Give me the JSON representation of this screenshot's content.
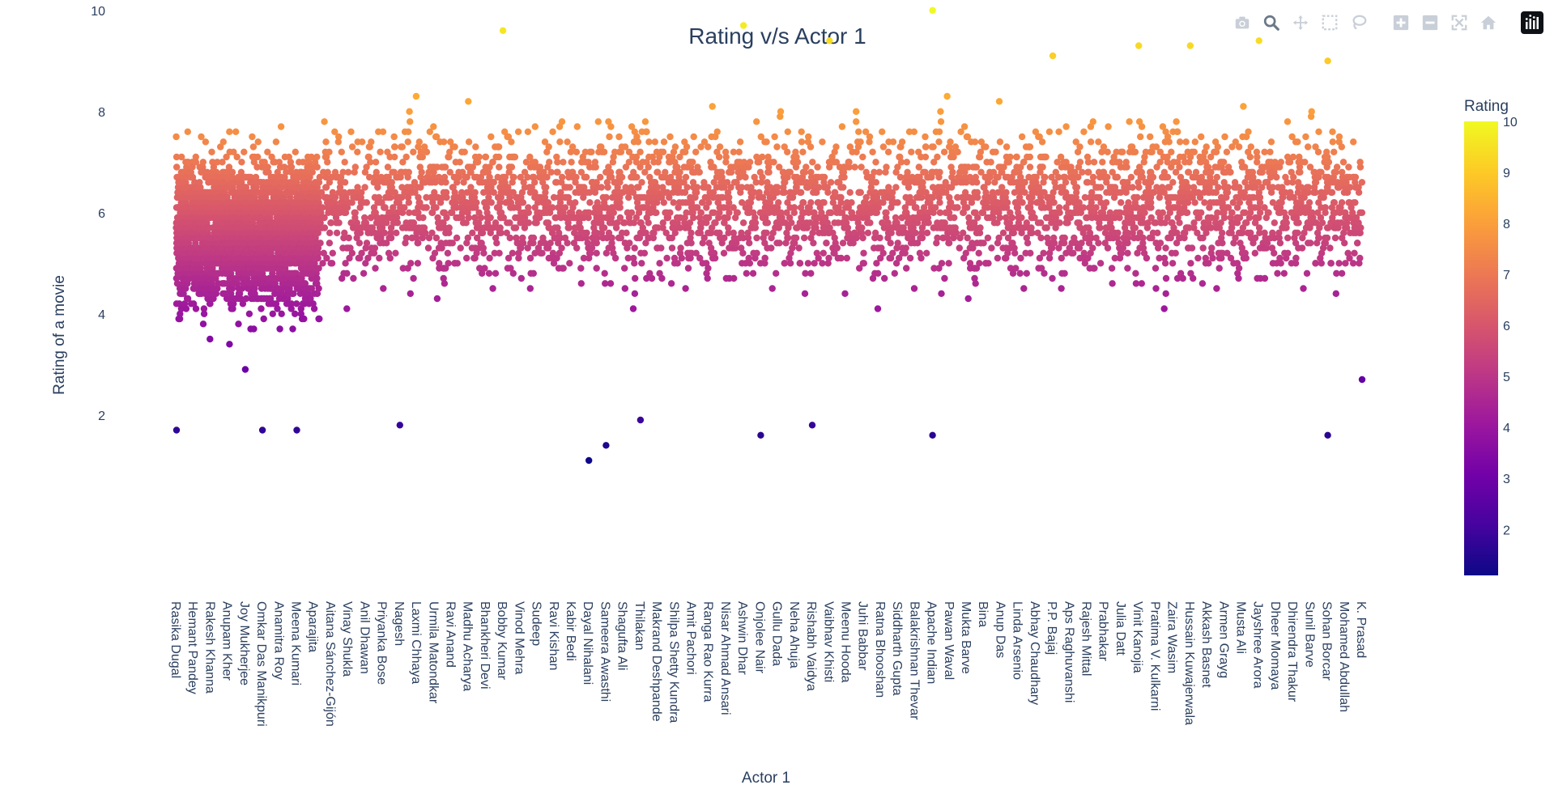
{
  "chart_data": {
    "type": "scatter",
    "title": "Rating v/s Actor 1",
    "xlabel": "Actor 1",
    "ylabel": "Rating of a movie",
    "ylim": [
      1,
      10.25
    ],
    "yticks": [
      2,
      4,
      6,
      8,
      10
    ],
    "grid": false,
    "colorbar": {
      "title": "Rating",
      "range": [
        1.1,
        10
      ],
      "ticks": [
        2,
        3,
        4,
        5,
        6,
        7,
        8,
        9,
        10
      ],
      "colorscale": "plasma"
    },
    "x_tick_labels": [
      "Rasika Dugal",
      "Hemant Pandey",
      "Rakesh Khanna",
      "Anupam Kher",
      "Joy Mukherjee",
      "Omkar Das Manikpuri",
      "Anamitra Roy",
      "Meena Kumari",
      "Aparajita",
      "Aitana Sánchez-Gijón",
      "Vinay Shukla",
      "Anil Dhawan",
      "Priyanka Bose",
      "Nagesh",
      "Laxmi Chhaya",
      "Urmila Matondkar",
      "Ravi Anand",
      "Madhu Acharya",
      "Bhankheri Devi",
      "Bobby Kumar",
      "Vinod Mehra",
      "Sudeep",
      "Ravi Kishan",
      "Kabir Bedi",
      "Dayal Nihalani",
      "Sameera Awasthi",
      "Shagufta Ali",
      "Thilakan",
      "Makrand Deshpande",
      "Shilpa Shetty Kundra",
      "Amit Pachori",
      "Ranga Rao Kurra",
      "Nisar Ahmad Ansari",
      "Ashwin Dhar",
      "Onjolee Nair",
      "Gullu Dada",
      "Neha Ahuja",
      "Rishabh Vaidya",
      "Vaibhav Khisti",
      "Meenu Hooda",
      "Juhi Babbar",
      "Ratna Bhooshan",
      "Siddharth Gupta",
      "Balakrishnan Thevar",
      "Apache Indian",
      "Pawan Waval",
      "Mukta Barve",
      "Bina",
      "Anup Das",
      "Linda Arsenio",
      "Abhay Chaudhary",
      "P.P. Bajaj",
      "Aps Raghuvanshi",
      "Rajesh Mittal",
      "Prabhakar",
      "Julia Datt",
      "Vinit Kanojia",
      "Pratima V. Kulkarni",
      "Zaira Wasim",
      "Hussain Kuwajerwala",
      "Akkash Basnet",
      "Armen Grayg",
      "Musta Ali",
      "Jayshree Arora",
      "Dheer Momaya",
      "Dhirendra Thakur",
      "Sunil Barve",
      "Sohan Borcar",
      "Mohamed Abdullah",
      "K. Prasad"
    ],
    "x_categories_count": 2046,
    "points_sample": [
      {
        "x": "Rasika Dugal",
        "y": 1.7
      },
      {
        "x": "Joy Mukherjee",
        "y": 2.9
      },
      {
        "x": "Omkar Das Manikpuri",
        "y": 1.7
      },
      {
        "x": "Meena Kumari",
        "y": 1.7
      },
      {
        "x": "Nagesh",
        "y": 1.8
      },
      {
        "x": "Bobby Kumar",
        "y": 9.6
      },
      {
        "x": "Dayal Nihalani",
        "y": 1.1
      },
      {
        "x": "Sameera Awasthi",
        "y": 1.4
      },
      {
        "x": "Thilakan",
        "y": 1.9
      },
      {
        "x": "Ashwin Dhar",
        "y": 9.7
      },
      {
        "x": "Onjolee Nair",
        "y": 1.6
      },
      {
        "x": "Rishabh Vaidya",
        "y": 1.8
      },
      {
        "x": "Vaibhav Khisti",
        "y": 9.4
      },
      {
        "x": "Apache Indian",
        "y": 10.0
      },
      {
        "x": "Apache Indian",
        "y": 1.6
      },
      {
        "x": "P.P. Bajaj",
        "y": 9.1
      },
      {
        "x": "Vinit Kanojia",
        "y": 9.3
      },
      {
        "x": "Hussain Kuwajerwala",
        "y": 9.3
      },
      {
        "x": "Jayshree Arora",
        "y": 9.4
      },
      {
        "x": "Sohan Borcar",
        "y": 1.6
      },
      {
        "x": "Sohan Borcar",
        "y": 9.0
      },
      {
        "x": "K. Prasad",
        "y": 2.7
      }
    ],
    "density": {
      "dense_start": 0,
      "dense_end": 0.12
    }
  },
  "modebar": {
    "buttons": [
      "camera-icon",
      "zoom-icon",
      "pan-icon",
      "box-select-icon",
      "lasso-select-icon",
      "zoom-in-icon",
      "zoom-out-icon",
      "autoscale-icon",
      "reset-axes-icon",
      "plotly-logo-icon"
    ]
  },
  "colors": {
    "text": "#2a3f5f",
    "modebar_icon": "#c9cfd8",
    "modebar_active": "#6b7989"
  }
}
